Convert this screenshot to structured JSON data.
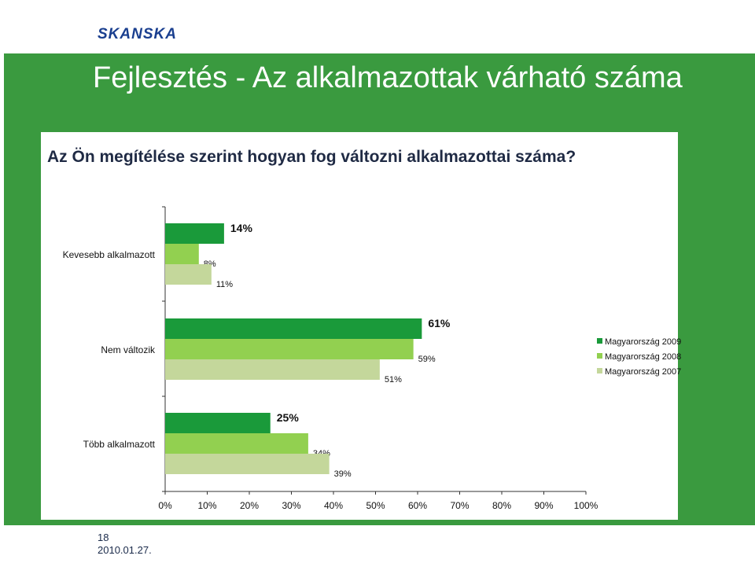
{
  "header": {
    "logo_text": "SKANSKA"
  },
  "slide": {
    "title": "Fejlesztés - Az alkalmazottak várható száma",
    "question": "Az Ön megítélése szerint hogyan fog változni alkalmazottai száma?"
  },
  "footer": {
    "page_number": "18",
    "date": "2010.01.27."
  },
  "colors": {
    "band": "#3a9a3f",
    "series_2009": "#1a9a3a",
    "series_2008": "#92d050",
    "series_2007": "#c4d79b"
  },
  "chart_data": {
    "type": "bar",
    "orientation": "horizontal",
    "categories": [
      "Kevesebb alkalmazott",
      "Nem változik",
      "Több alkalmazott"
    ],
    "series": [
      {
        "name": "Magyarország 2009",
        "values": [
          14,
          61,
          25
        ],
        "labels": [
          "14%",
          "61%",
          "25%"
        ],
        "color": "#1a9a3a"
      },
      {
        "name": "Magyarország 2008",
        "values": [
          8,
          59,
          34
        ],
        "labels": [
          "8%",
          "59%",
          "34%"
        ],
        "color": "#92d050"
      },
      {
        "name": "Magyarország 2007",
        "values": [
          11,
          51,
          39
        ],
        "labels": [
          "11%",
          "51%",
          "39%"
        ],
        "color": "#c4d79b"
      }
    ],
    "xlim": [
      0,
      100
    ],
    "x_ticks": [
      "0%",
      "10%",
      "20%",
      "30%",
      "40%",
      "50%",
      "60%",
      "70%",
      "80%",
      "90%",
      "100%"
    ],
    "legend_position": "right",
    "grid": false
  }
}
